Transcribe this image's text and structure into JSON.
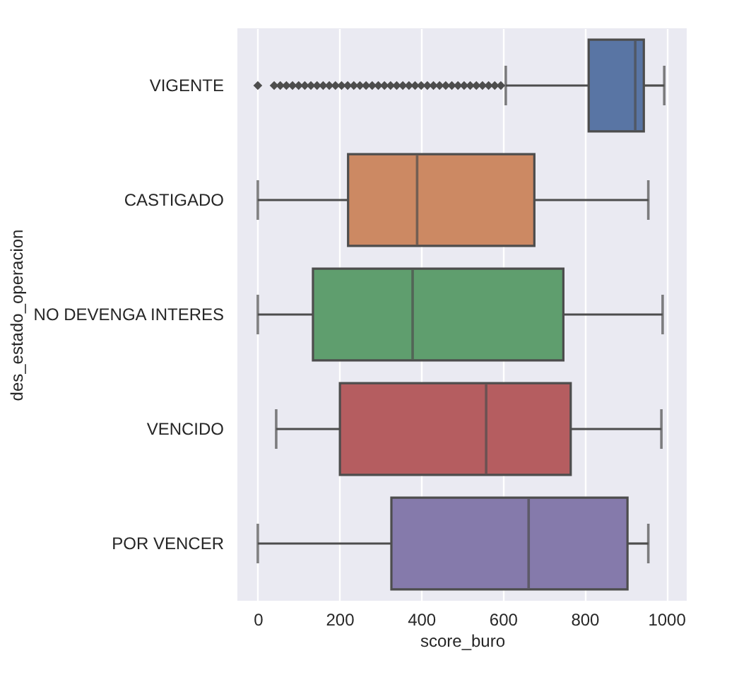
{
  "chart_data": {
    "type": "box",
    "orientation": "horizontal",
    "xlabel": "score_buro",
    "ylabel": "des_estado_operacion",
    "categories": [
      "VIGENTE",
      "CASTIGADO",
      "NO DEVENGA INTERES",
      "VENCIDO",
      "POR VENCER"
    ],
    "xlim": [
      -50,
      1050
    ],
    "xticks": [
      0,
      200,
      400,
      600,
      800,
      1000
    ],
    "grid": "x",
    "colors": [
      "#5975a4",
      "#cc8963",
      "#5f9e6e",
      "#b55d60",
      "#857aab"
    ],
    "boxes": [
      {
        "low": 607,
        "q1": 810,
        "median": 924,
        "q3": 945,
        "high": 995,
        "outliers": [
          0,
          40,
          55,
          70,
          85,
          100,
          115,
          130,
          145,
          160,
          175,
          190,
          205,
          220,
          235,
          250,
          265,
          280,
          295,
          310,
          325,
          340,
          355,
          370,
          385,
          400,
          415,
          430,
          445,
          460,
          475,
          490,
          505,
          520,
          535,
          550,
          565,
          580,
          595
        ]
      },
      {
        "low": 0,
        "q1": 221,
        "median": 390,
        "q3": 677,
        "high": 956
      },
      {
        "low": 0,
        "q1": 135,
        "median": 379,
        "q3": 748,
        "high": 991
      },
      {
        "low": 45,
        "q1": 201,
        "median": 559,
        "q3": 766,
        "high": 988
      },
      {
        "low": 0,
        "q1": 327,
        "median": 663,
        "q3": 905,
        "high": 956
      }
    ]
  }
}
